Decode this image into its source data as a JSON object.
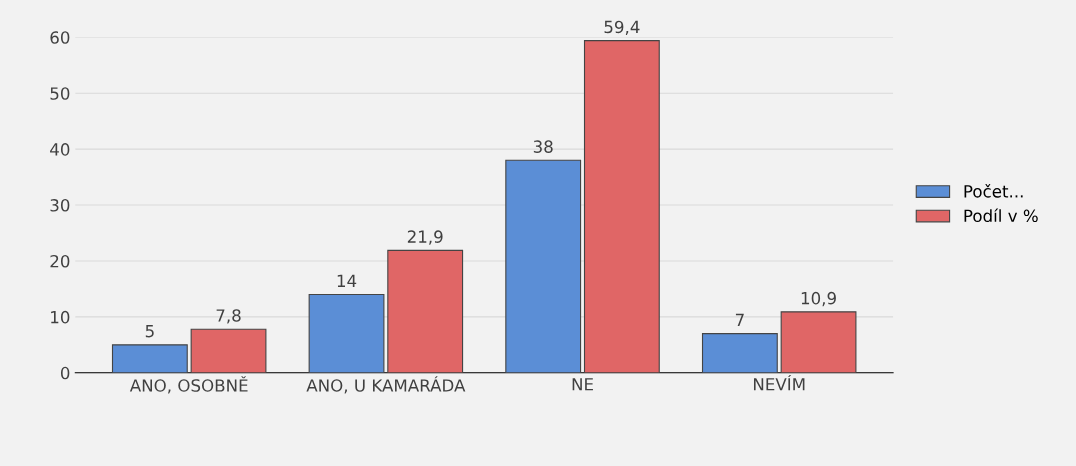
{
  "chart_data": {
    "type": "bar",
    "categories": [
      "ANO, OSOBNĚ",
      "ANO, U KAMARÁDA",
      "NE",
      "NEVÍM"
    ],
    "series": [
      {
        "name": "Počet...",
        "color": "#5b8ed6",
        "values": [
          5,
          14,
          38,
          7
        ],
        "value_labels": [
          "5",
          "14",
          "38",
          "7"
        ]
      },
      {
        "name": "Podíl v %",
        "color": "#e06666",
        "values": [
          7.8,
          21.9,
          59.4,
          10.9
        ],
        "value_labels": [
          "7,8",
          "21,9",
          "59,4",
          "10,9"
        ]
      }
    ],
    "ylim": [
      0,
      60
    ],
    "yticks": [
      0,
      10,
      20,
      30,
      40,
      50,
      60
    ],
    "grid": "y",
    "legend": "right"
  }
}
